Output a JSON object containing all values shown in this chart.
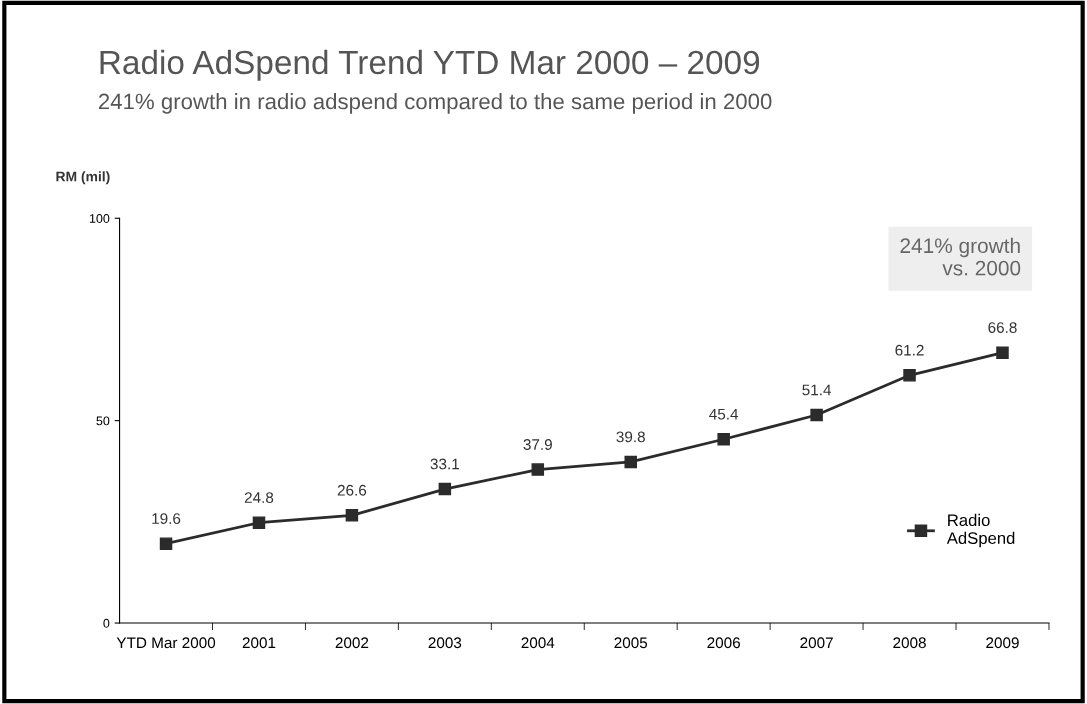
{
  "chart_data": {
    "type": "line",
    "title": "Radio AdSpend Trend YTD Mar 2000 – 2009",
    "subtitle": "241% growth in radio adspend compared to the same period in 2000",
    "ylabel": "RM (mil)",
    "categories": [
      "YTD Mar 2000",
      "2001",
      "2002",
      "2003",
      "2004",
      "2005",
      "2006",
      "2007",
      "2008",
      "2009"
    ],
    "series": [
      {
        "name": "Radio\nAdSpend",
        "color": "#2b2b2b",
        "values": [
          19.6,
          24.8,
          26.6,
          33.1,
          37.9,
          39.8,
          45.4,
          51.4,
          61.2,
          66.8
        ]
      }
    ],
    "ylim": [
      0,
      100
    ],
    "yticks": [
      0,
      50,
      100
    ],
    "data_labels": true,
    "marker": "square",
    "line_style": "solid",
    "grid": false,
    "legend": "bottom right",
    "annotations": [
      "241% growth\nvs. 2000"
    ]
  }
}
